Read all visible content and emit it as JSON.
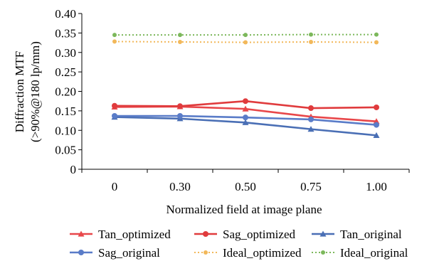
{
  "chart_data": {
    "type": "line",
    "categories": [
      "0",
      "0.30",
      "0.50",
      "0.75",
      "1.00"
    ],
    "xlabel": "Normalized field at image plane",
    "ylabel": [
      "Diffraction MTF",
      "(>90%@180 lp/mm)"
    ],
    "ylim": [
      0,
      0.4
    ],
    "yticks": [
      "0",
      "0.05",
      "0.10",
      "0.15",
      "0.20",
      "0.25",
      "0.30",
      "0.35",
      "0.40"
    ],
    "grid": false,
    "legend_position": "bottom",
    "series": [
      {
        "name": "Tan_optimized",
        "values": [
          0.16,
          0.161,
          0.155,
          0.135,
          0.123
        ],
        "color": "#e8474a",
        "marker": "triangle",
        "line": "solid"
      },
      {
        "name": "Sag_optimized",
        "values": [
          0.163,
          0.162,
          0.175,
          0.157,
          0.159
        ],
        "color": "#e03b3d",
        "marker": "circle",
        "line": "solid"
      },
      {
        "name": "Tan_original",
        "values": [
          0.134,
          0.13,
          0.12,
          0.103,
          0.087
        ],
        "color": "#4a6fb5",
        "marker": "triangle",
        "line": "solid"
      },
      {
        "name": "Sag_original",
        "values": [
          0.137,
          0.137,
          0.133,
          0.128,
          0.114
        ],
        "color": "#5a7cc8",
        "marker": "circle",
        "line": "solid"
      },
      {
        "name": "Ideal_optimized",
        "values": [
          0.328,
          0.327,
          0.326,
          0.327,
          0.326
        ],
        "color": "#f2b85a",
        "marker": "circle",
        "line": "dotted"
      },
      {
        "name": "Ideal_original",
        "values": [
          0.345,
          0.345,
          0.345,
          0.346,
          0.346
        ],
        "color": "#7cb85b",
        "marker": "circle",
        "line": "dotted"
      }
    ]
  }
}
